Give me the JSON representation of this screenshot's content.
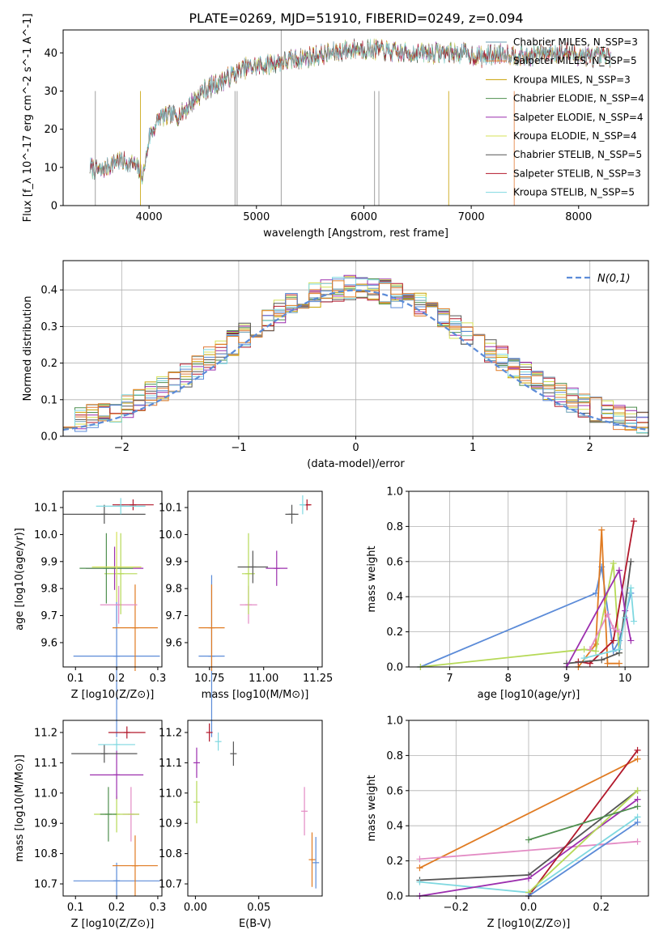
{
  "title": "PLATE=0269, MJD=51910, FIBERID=0249, z=0.094",
  "colors": {
    "Chabrier MILES": "#6a9fb5",
    "Salpeter MILES": "#e07b39",
    "Kroupa MILES": "#c8a000",
    "Chabrier ELODIE": "#4f8f4f",
    "Salpeter ELODIE": "#9c2fae",
    "Kroupa ELODIE": "#d4e157",
    "Chabrier STELIB": "#555555",
    "Salpeter STELIB": "#b2182b",
    "Kroupa STELIB": "#7fd8e0",
    "blue": "#5b8bd8",
    "pink": "#e38bc4",
    "orange": "#e07b22",
    "green": "#b6d957",
    "gray": "#888888"
  },
  "chart_data": [
    {
      "type": "line",
      "xlabel": "wavelength [Angstrom, rest frame]",
      "ylabel": "Flux [f_λ 10^-17 erg cm^-2 s^-1 A^-1]",
      "xlim": [
        3200,
        8650
      ],
      "ylim": [
        0,
        46
      ],
      "xticks": [
        4000,
        5000,
        6000,
        7000,
        8000
      ],
      "yticks": [
        0,
        10,
        20,
        30,
        40
      ],
      "legend": {
        "placement": "top-right",
        "entries": [
          "Chabrier MILES, N_SSP=3",
          "Salpeter MILES, N_SSP=5",
          "Kroupa MILES, N_SSP=3",
          "Chabrier ELODIE, N_SSP=4",
          "Salpeter ELODIE, N_SSP=4",
          "Kroupa ELODIE, N_SSP=4",
          "Chabrier STELIB, N_SSP=5",
          "Salpeter STELIB, N_SSP=3",
          "Kroupa STELIB, N_SSP=5"
        ]
      },
      "spectrum_anchors": {
        "x": [
          3450,
          3550,
          3700,
          3850,
          3950,
          4000,
          4100,
          4300,
          4500,
          4700,
          4900,
          5100,
          5300,
          5500,
          5700,
          5900,
          6100,
          6300,
          6500,
          6700,
          6900,
          7100,
          7300,
          7500,
          7700,
          7900,
          8100,
          8300
        ],
        "y": [
          10,
          9,
          12,
          11,
          8,
          18,
          23,
          24,
          30,
          33,
          36,
          37,
          38,
          39,
          40,
          41,
          41,
          40,
          40,
          40,
          40,
          39,
          40,
          39,
          40,
          40,
          39,
          39
        ]
      }
    },
    {
      "type": "area",
      "xlabel": "(data-model)/error",
      "ylabel": "Normed distribution",
      "xlim": [
        -2.5,
        2.5
      ],
      "ylim": [
        0,
        0.48
      ],
      "xticks": [
        -2,
        -1,
        0,
        1,
        2
      ],
      "yticks": [
        0.0,
        0.1,
        0.2,
        0.3,
        0.4
      ],
      "grid": true,
      "legend": {
        "placement": "top-right",
        "entries": [
          "N(0,1)"
        ]
      },
      "bins": 50
    },
    {
      "type": "scatter",
      "xlabel": "Z [log10(Z/Z⊙)]",
      "ylabel": "age [log10(age/yr)]",
      "xlim": [
        0.07,
        0.31
      ],
      "ylim": [
        9.51,
        10.16
      ],
      "xticks": [
        0.1,
        0.2,
        0.3
      ],
      "yticks": [
        9.6,
        9.7,
        9.8,
        9.9,
        10.0,
        10.1
      ],
      "points": [
        {
          "x": 0.2,
          "y": 9.55,
          "xerr": 0.105,
          "yerr": 0.3,
          "c": "blue"
        },
        {
          "x": 0.245,
          "y": 9.655,
          "xerr": 0.055,
          "yerr": 0.16,
          "c": "orange"
        },
        {
          "x": 0.205,
          "y": 9.74,
          "xerr": 0.045,
          "yerr": 0.07,
          "c": "pink"
        },
        {
          "x": 0.21,
          "y": 9.855,
          "xerr": 0.04,
          "yerr": 0.15,
          "c": "green"
        },
        {
          "x": 0.195,
          "y": 9.875,
          "xerr": 0.07,
          "yerr": 0.08,
          "c": "Salpeter ELODIE"
        },
        {
          "x": 0.175,
          "y": 9.875,
          "xerr": 0.065,
          "yerr": 0.13,
          "c": "Chabrier ELODIE"
        },
        {
          "x": 0.2,
          "y": 9.88,
          "xerr": 0.06,
          "yerr": 0.13,
          "c": "Kroupa ELODIE"
        },
        {
          "x": 0.17,
          "y": 10.075,
          "xerr": 0.1,
          "yerr": 0.035,
          "c": "Chabrier STELIB"
        },
        {
          "x": 0.24,
          "y": 10.11,
          "xerr": 0.05,
          "yerr": 0.02,
          "c": "Salpeter STELIB"
        },
        {
          "x": 0.21,
          "y": 10.105,
          "xerr": 0.06,
          "yerr": 0.03,
          "c": "Kroupa STELIB"
        }
      ]
    },
    {
      "type": "scatter",
      "xlabel": "mass [log10(M/M⊙)]",
      "ylabel": "",
      "xlim": [
        10.65,
        11.27
      ],
      "ylim": [
        9.51,
        10.16
      ],
      "xticks": [
        10.75,
        11.0,
        11.25
      ],
      "yticks": [
        9.6,
        9.7,
        9.8,
        9.9,
        10.0,
        10.1
      ],
      "points": [
        {
          "x": 10.76,
          "y": 9.55,
          "xerr": 0.06,
          "yerr": 0.3,
          "c": "blue"
        },
        {
          "x": 10.76,
          "y": 9.655,
          "xerr": 0.06,
          "yerr": 0.16,
          "c": "orange"
        },
        {
          "x": 10.93,
          "y": 9.74,
          "xerr": 0.04,
          "yerr": 0.07,
          "c": "pink"
        },
        {
          "x": 10.93,
          "y": 9.855,
          "xerr": 0.03,
          "yerr": 0.15,
          "c": "green"
        },
        {
          "x": 11.06,
          "y": 9.875,
          "xerr": 0.05,
          "yerr": 0.065,
          "c": "Salpeter ELODIE"
        },
        {
          "x": 10.95,
          "y": 9.88,
          "xerr": 0.07,
          "yerr": 0.06,
          "c": "Chabrier STELIB"
        },
        {
          "x": 11.13,
          "y": 10.075,
          "xerr": 0.03,
          "yerr": 0.035,
          "c": "Chabrier STELIB"
        },
        {
          "x": 11.2,
          "y": 10.11,
          "xerr": 0.02,
          "yerr": 0.02,
          "c": "Salpeter STELIB"
        },
        {
          "x": 11.18,
          "y": 10.11,
          "xerr": 0.01,
          "yerr": 0.035,
          "c": "Kroupa STELIB"
        }
      ]
    },
    {
      "type": "line",
      "xlabel": "age [log10(age/yr)]",
      "ylabel": "mass weight",
      "xlim": [
        6.3,
        10.4
      ],
      "ylim": [
        0,
        1
      ],
      "xticks": [
        7,
        8,
        9,
        10
      ],
      "yticks": [
        0.0,
        0.2,
        0.4,
        0.6,
        0.8,
        1.0
      ],
      "grid": true,
      "series": [
        {
          "c": "blue",
          "x": [
            6.5,
            9.5,
            9.6,
            9.8,
            9.9,
            10.1
          ],
          "y": [
            0.0,
            0.42,
            0.57,
            0.09,
            0.15,
            0.42
          ]
        },
        {
          "c": "orange",
          "x": [
            9.2,
            9.5,
            9.6,
            9.7,
            9.9
          ],
          "y": [
            0.0,
            0.13,
            0.78,
            0.02,
            0.02
          ]
        },
        {
          "c": "green",
          "x": [
            6.5,
            9.3,
            9.5,
            9.8,
            9.9
          ],
          "y": [
            0.0,
            0.1,
            0.09,
            0.59,
            0.08
          ]
        },
        {
          "c": "Salpeter STELIB",
          "x": [
            9.2,
            9.4,
            9.8,
            10.15
          ],
          "y": [
            0.03,
            0.02,
            0.15,
            0.83
          ]
        },
        {
          "c": "Chabrier STELIB",
          "x": [
            9.0,
            9.6,
            9.9,
            10.1
          ],
          "y": [
            0.02,
            0.04,
            0.08,
            0.6
          ]
        },
        {
          "c": "Salpeter ELODIE",
          "x": [
            9.0,
            9.9,
            10.0,
            10.1
          ],
          "y": [
            0.0,
            0.55,
            0.32,
            0.15
          ]
        },
        {
          "c": "pink",
          "x": [
            9.4,
            9.7,
            9.8,
            9.9
          ],
          "y": [
            0.1,
            0.3,
            0.22,
            0.2
          ]
        },
        {
          "c": "Kroupa STELIB",
          "x": [
            9.3,
            9.9,
            10.0,
            10.1,
            10.15
          ],
          "y": [
            0.05,
            0.1,
            0.28,
            0.45,
            0.26
          ]
        }
      ]
    },
    {
      "type": "scatter",
      "xlabel": "Z [log10(Z/Z⊙)]",
      "ylabel": "mass [log10(M/M⊙)]",
      "xlim": [
        0.07,
        0.31
      ],
      "ylim": [
        10.66,
        11.24
      ],
      "xticks": [
        0.1,
        0.2,
        0.3
      ],
      "yticks": [
        10.7,
        10.8,
        10.9,
        11.0,
        11.1,
        11.2
      ],
      "points": [
        {
          "x": 0.2,
          "y": 10.71,
          "xerr": 0.105,
          "yerr": 0.06,
          "c": "blue"
        },
        {
          "x": 0.245,
          "y": 10.76,
          "xerr": 0.055,
          "yerr": 0.1,
          "c": "orange"
        },
        {
          "x": 0.235,
          "y": 10.93,
          "xerr": 0.02,
          "yerr": 0.09,
          "c": "pink"
        },
        {
          "x": 0.2,
          "y": 10.93,
          "xerr": 0.055,
          "yerr": 0.06,
          "c": "green"
        },
        {
          "x": 0.18,
          "y": 10.93,
          "xerr": 0.02,
          "yerr": 0.09,
          "c": "Chabrier ELODIE"
        },
        {
          "x": 0.2,
          "y": 11.06,
          "xerr": 0.065,
          "yerr": 0.08,
          "c": "Salpeter ELODIE"
        },
        {
          "x": 0.17,
          "y": 11.13,
          "xerr": 0.08,
          "yerr": 0.03,
          "c": "Chabrier STELIB"
        },
        {
          "x": 0.225,
          "y": 11.2,
          "xerr": 0.045,
          "yerr": 0.02,
          "c": "Salpeter STELIB"
        },
        {
          "x": 0.2,
          "y": 11.16,
          "xerr": 0.045,
          "yerr": 0.02,
          "c": "Kroupa STELIB"
        }
      ]
    },
    {
      "type": "scatter",
      "xlabel": "E(B-V)",
      "ylabel": "",
      "xlim": [
        -0.006,
        0.1
      ],
      "ylim": [
        10.66,
        11.24
      ],
      "xticks": [
        0.0,
        0.05
      ],
      "yticks": [
        10.7,
        10.8,
        10.9,
        11.0,
        11.1,
        11.2
      ],
      "points": [
        {
          "x": 0.095,
          "y": 10.77,
          "xerr": 0,
          "yerr": 0.085,
          "c": "blue"
        },
        {
          "x": 0.092,
          "y": 10.78,
          "xerr": 0,
          "yerr": 0.09,
          "c": "orange"
        },
        {
          "x": 0.086,
          "y": 10.94,
          "xerr": 0,
          "yerr": 0.08,
          "c": "pink"
        },
        {
          "x": 0.001,
          "y": 10.97,
          "xerr": 0,
          "yerr": 0.07,
          "c": "green"
        },
        {
          "x": 0.001,
          "y": 11.1,
          "xerr": 0,
          "yerr": 0.05,
          "c": "Salpeter ELODIE"
        },
        {
          "x": 0.03,
          "y": 11.13,
          "xerr": 0,
          "yerr": 0.04,
          "c": "Chabrier STELIB"
        },
        {
          "x": 0.011,
          "y": 11.2,
          "xerr": 0,
          "yerr": 0.03,
          "c": "Salpeter STELIB"
        },
        {
          "x": 0.018,
          "y": 11.17,
          "xerr": 0,
          "yerr": 0.03,
          "c": "Kroupa STELIB"
        }
      ]
    },
    {
      "type": "line",
      "xlabel": "Z [log10(Z/Z⊙)]",
      "ylabel": "mass weight",
      "xlim": [
        -0.33,
        0.33
      ],
      "ylim": [
        0,
        1
      ],
      "xticks": [
        -0.2,
        0.0,
        0.2
      ],
      "yticks": [
        0.0,
        0.2,
        0.4,
        0.6,
        0.8,
        1.0
      ],
      "grid": true,
      "series": [
        {
          "c": "orange",
          "x": [
            -0.3,
            0.3
          ],
          "y": [
            0.16,
            0.78
          ]
        },
        {
          "c": "pink",
          "x": [
            -0.3,
            0.3
          ],
          "y": [
            0.21,
            0.31
          ]
        },
        {
          "c": "Chabrier STELIB",
          "x": [
            -0.3,
            0.0,
            0.3
          ],
          "y": [
            0.09,
            0.12,
            0.6
          ]
        },
        {
          "c": "Kroupa STELIB",
          "x": [
            -0.3,
            0.0,
            0.3
          ],
          "y": [
            0.08,
            0.02,
            0.45
          ]
        },
        {
          "c": "Salpeter ELODIE",
          "x": [
            -0.3,
            0.0,
            0.3
          ],
          "y": [
            0.0,
            0.1,
            0.55
          ]
        },
        {
          "c": "Salpeter STELIB",
          "x": [
            0.0,
            0.3
          ],
          "y": [
            0.0,
            0.83
          ]
        },
        {
          "c": "green",
          "x": [
            0.0,
            0.3
          ],
          "y": [
            0.02,
            0.6
          ]
        },
        {
          "c": "blue",
          "x": [
            0.0,
            0.3
          ],
          "y": [
            0.0,
            0.42
          ]
        },
        {
          "c": "Chabrier ELODIE",
          "x": [
            0.0,
            0.3
          ],
          "y": [
            0.32,
            0.51
          ]
        }
      ]
    }
  ]
}
